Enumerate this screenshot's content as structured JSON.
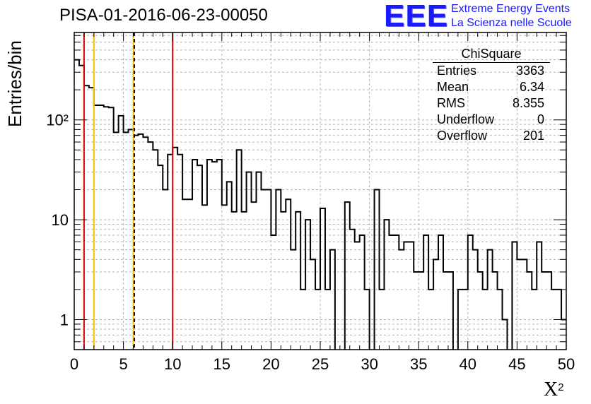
{
  "title": "PISA-01-2016-06-23-00050",
  "logo": {
    "mark": "EEE",
    "line1": "Extreme Energy Events",
    "line2": "La Scienza nelle Scuole"
  },
  "stats": {
    "title": "ChiSquare",
    "rows": [
      {
        "label": "Entries",
        "value": "3363"
      },
      {
        "label": "Mean",
        "value": "6.34"
      },
      {
        "label": "RMS",
        "value": "8.355"
      },
      {
        "label": "Underflow",
        "value": "0"
      },
      {
        "label": "Overflow",
        "value": "201"
      }
    ]
  },
  "chart_data": {
    "type": "histogram",
    "title": "PISA-01-2016-06-23-00050",
    "xlabel": "X",
    "xlabel_sup": "2",
    "ylabel": "Entries/bin",
    "xlim": [
      0,
      50
    ],
    "ylim": [
      0.5,
      750
    ],
    "ylog": true,
    "grid": true,
    "bin_width": 0.5,
    "x_ticks": [
      "0",
      "5",
      "10",
      "15",
      "20",
      "25",
      "30",
      "35",
      "40",
      "45",
      "50"
    ],
    "y_ticks": [
      "1",
      "10",
      "10²"
    ],
    "values": [
      400,
      350,
      220,
      210,
      140,
      140,
      135,
      133,
      75,
      110,
      75,
      80,
      70,
      72,
      67,
      60,
      50,
      35,
      20,
      45,
      53,
      45,
      16,
      16,
      40,
      35,
      14,
      40,
      38,
      40,
      14,
      24,
      12,
      50,
      12,
      30,
      15,
      30,
      20,
      20,
      7,
      20,
      12,
      16,
      5,
      12,
      2,
      10,
      4,
      2,
      13,
      2,
      5,
      0,
      0,
      15,
      8,
      6,
      7,
      2,
      0,
      20,
      2,
      10,
      7,
      7,
      5,
      6,
      6,
      3,
      3,
      7,
      2,
      4,
      7,
      3,
      3,
      0,
      2,
      2,
      7,
      5,
      3,
      2,
      5,
      3,
      2,
      1,
      0,
      6,
      4,
      4,
      3,
      2,
      6,
      3,
      3,
      2,
      2,
      1
    ],
    "vertical_lines": [
      {
        "x": 1,
        "color": "#e00000",
        "style": "solid"
      },
      {
        "x": 2,
        "color": "#ffc000",
        "style": "solid"
      },
      {
        "x": 6,
        "color": "#ffc000",
        "style": "solid"
      },
      {
        "x": 6.1,
        "color": "#000000",
        "style": "dashed"
      },
      {
        "x": 10,
        "color": "#e00000",
        "style": "solid"
      }
    ]
  }
}
